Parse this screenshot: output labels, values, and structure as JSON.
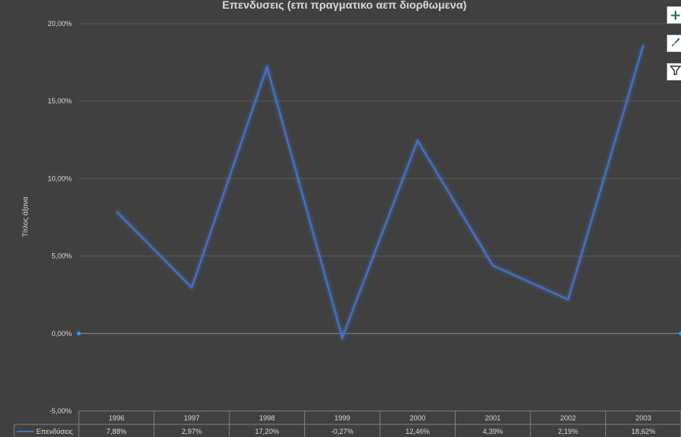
{
  "chart_data": {
    "type": "line",
    "title": "Επενδυσεις (επι πραγματικο αεπ διορθωμενα)",
    "ylabel": "Τίτλος άξονα",
    "ylim": [
      -5,
      20
    ],
    "ytick_labels": [
      "20,00%",
      "15,00%",
      "10,00%",
      "5,00%",
      "0,00%",
      "-5,00%"
    ],
    "ytick_values": [
      20,
      15,
      10,
      5,
      0,
      -5
    ],
    "categories": [
      "1996",
      "1997",
      "1998",
      "1999",
      "2000",
      "2001",
      "2002",
      "2003"
    ],
    "series": [
      {
        "name": "Επενδύσεις",
        "values": [
          7.88,
          2.97,
          17.2,
          -0.27,
          12.46,
          4.39,
          2.19,
          18.62
        ],
        "value_labels": [
          "7,88%",
          "2,97%",
          "17,20%",
          "-0,27%",
          "12,46%",
          "4,39%",
          "2,19%",
          "18,62%"
        ],
        "color": "#4472c4"
      }
    ],
    "grid": true,
    "data_table": true,
    "legend": "in data table"
  },
  "colors": {
    "background": "#404040",
    "gridline": "#5a5a5a",
    "zero_line": "#8c8c8c",
    "text": "#d9d9d9",
    "table_border": "#7f7f7f",
    "selection_handle": "#2e9cff"
  },
  "side_buttons": [
    {
      "name": "chart-elements-icon",
      "glyph": "+",
      "color": "#217346"
    },
    {
      "name": "chart-styles-icon",
      "glyph": "🖌",
      "color": "#2b579a"
    },
    {
      "name": "chart-filters-icon",
      "glyph": "⏷",
      "color": "#333333"
    }
  ]
}
